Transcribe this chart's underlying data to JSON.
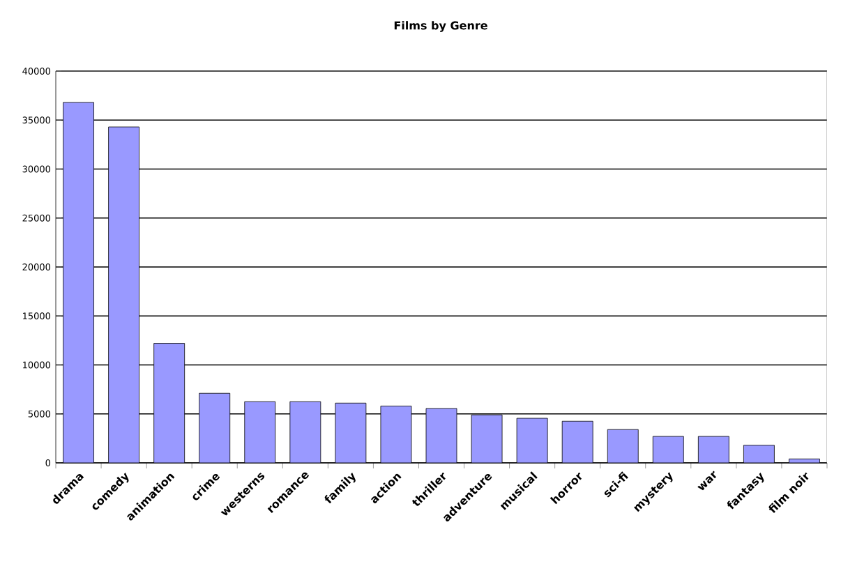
{
  "chart_data": {
    "type": "bar",
    "title": "Films by Genre",
    "categories": [
      "drama",
      "comedy",
      "animation",
      "crime",
      "westerns",
      "romance",
      "family",
      "action",
      "thriller",
      "adventure",
      "musical",
      "horror",
      "sci-fi",
      "mystery",
      "war",
      "fantasy",
      "film noir"
    ],
    "values": [
      36800,
      34300,
      12200,
      7100,
      6250,
      6250,
      6100,
      5800,
      5550,
      4900,
      4550,
      4250,
      3400,
      2700,
      2700,
      1800,
      400
    ],
    "color": "#9999ff",
    "ylim": [
      0,
      40000
    ],
    "yticks": [
      0,
      5000,
      10000,
      15000,
      20000,
      25000,
      30000,
      35000,
      40000
    ],
    "grid": "y"
  }
}
